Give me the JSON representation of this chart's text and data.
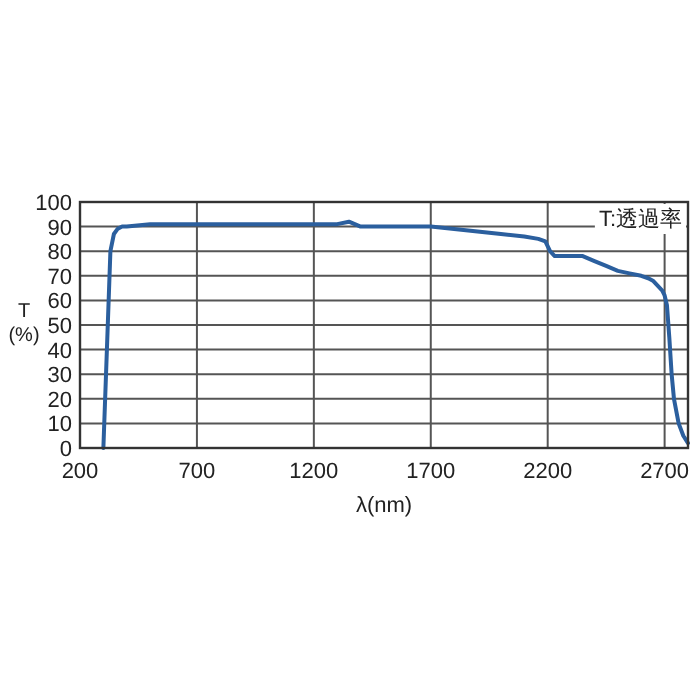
{
  "chart_data": {
    "type": "line",
    "xlabel": "λ(nm)",
    "ylabel": "T (%)",
    "annotations": [
      "T:透過率"
    ],
    "xlim": [
      200,
      2800
    ],
    "ylim": [
      0,
      100
    ],
    "xticks": [
      200,
      700,
      1200,
      1700,
      2200,
      2700
    ],
    "yticks": [
      0,
      10,
      20,
      30,
      40,
      50,
      60,
      70,
      80,
      90,
      100
    ],
    "grid": true,
    "marker": "none",
    "line_style": "solid",
    "series": [
      {
        "color": "#2b5f9e",
        "x": [
          300,
          315,
          330,
          345,
          360,
          380,
          400,
          500,
          600,
          800,
          1000,
          1200,
          1300,
          1350,
          1400,
          1500,
          1600,
          1700,
          1800,
          1900,
          2000,
          2100,
          2160,
          2190,
          2210,
          2230,
          2300,
          2350,
          2400,
          2450,
          2500,
          2550,
          2600,
          2630,
          2650,
          2670,
          2690,
          2700,
          2710,
          2720,
          2730,
          2740,
          2760,
          2780,
          2800
        ],
        "values": [
          0,
          40,
          80,
          87,
          89,
          90,
          90,
          91,
          91,
          91,
          91,
          91,
          91,
          92,
          90,
          90,
          90,
          90,
          89,
          88,
          87,
          86,
          85,
          84,
          80,
          78,
          78,
          78,
          76,
          74,
          72,
          71,
          70,
          69,
          68,
          66,
          64,
          62,
          58,
          45,
          30,
          20,
          10,
          5,
          2
        ]
      }
    ]
  }
}
